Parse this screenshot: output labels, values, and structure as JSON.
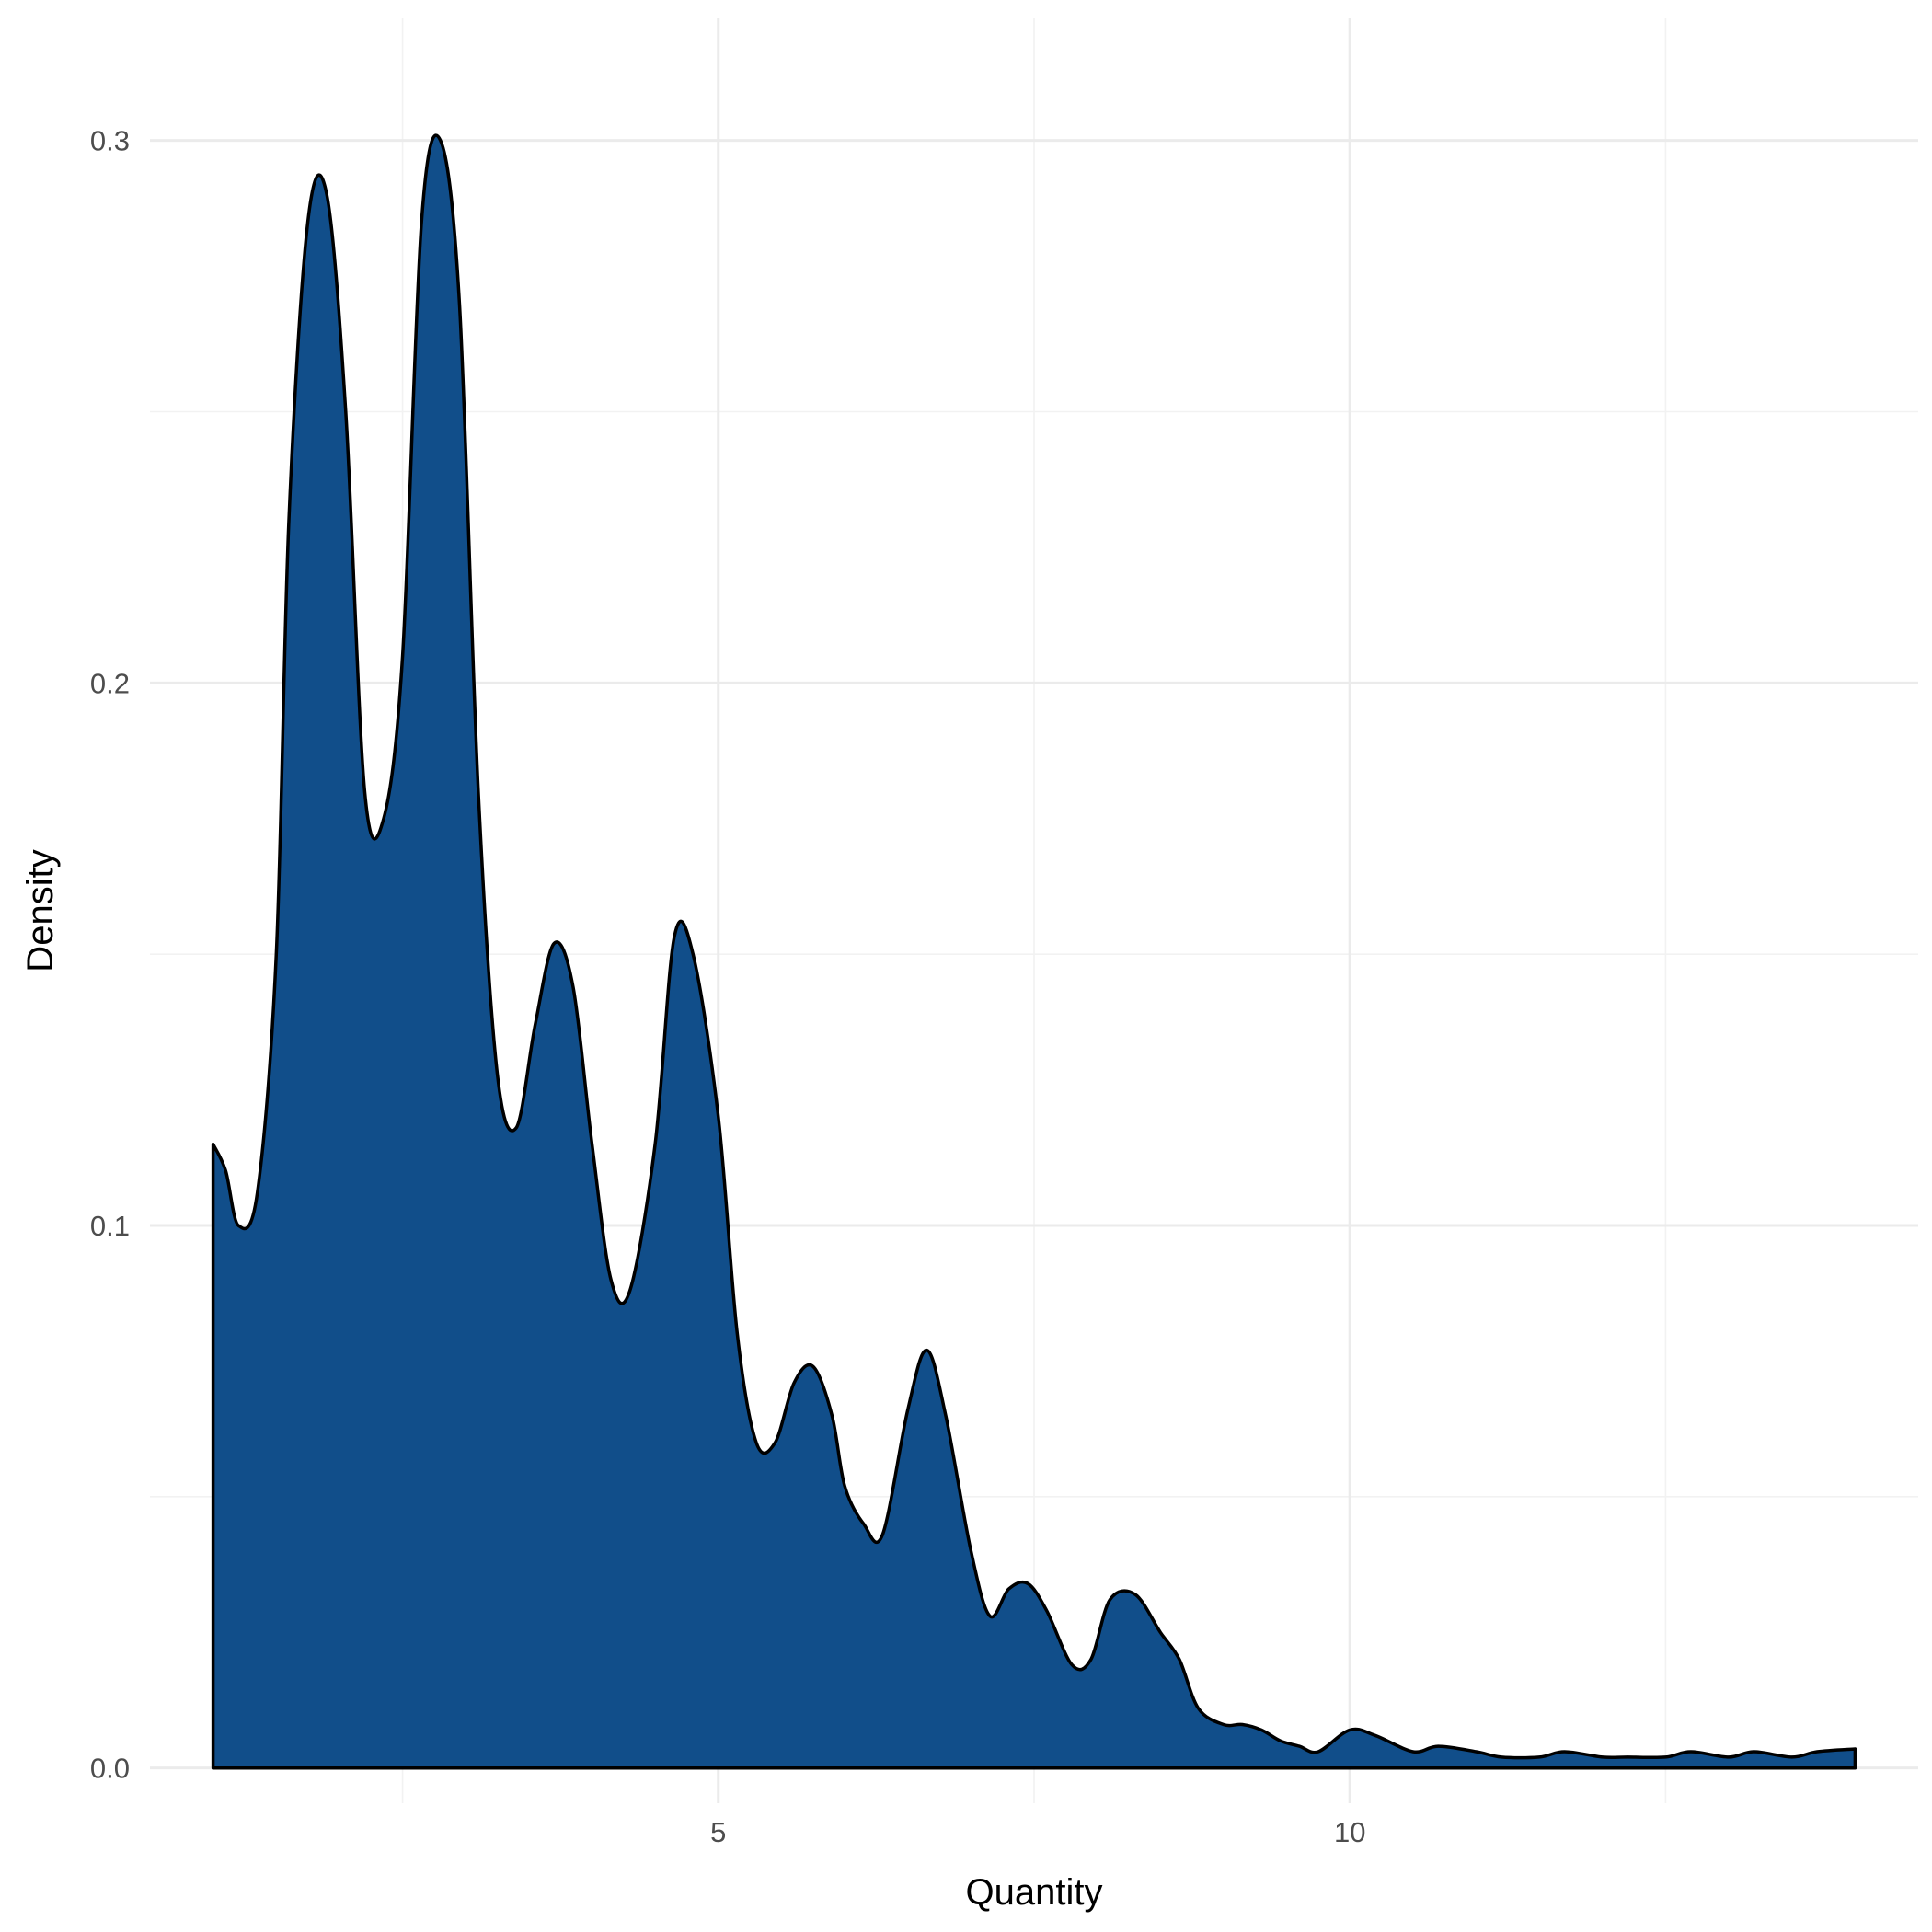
{
  "chart_data": {
    "type": "area",
    "title": "",
    "xlabel": "Quantity",
    "ylabel": "Density",
    "xlim": [
      0.5,
      14.5
    ],
    "ylim": [
      -0.0065,
      0.3225
    ],
    "x_ticks": [
      5,
      10
    ],
    "y_ticks": [
      0.0,
      0.1,
      0.2,
      0.3
    ],
    "y_tick_labels": [
      "0.0",
      "0.1",
      "0.2",
      "0.3"
    ],
    "x_minor_ticks": [
      2.5,
      7.5,
      12.5
    ],
    "y_minor_ticks": [
      0.05,
      0.15,
      0.25
    ],
    "grid": true,
    "fill_color": "#114e8a",
    "line_color": "#000000",
    "series": [
      {
        "x": [
          1,
          1.1,
          1.2,
          1.35,
          1.5,
          1.6,
          1.75,
          1.9,
          2.05,
          2.2,
          2.35,
          2.5,
          2.65,
          2.8,
          2.95,
          3.1,
          3.25,
          3.4,
          3.55,
          3.7,
          3.85,
          4.0,
          4.15,
          4.3,
          4.5,
          4.65,
          4.8,
          5.0,
          5.15,
          5.3,
          5.45,
          5.6,
          5.75,
          5.9,
          6.0,
          6.15,
          6.3,
          6.5,
          6.65,
          6.8,
          7.0,
          7.15,
          7.3,
          7.45,
          7.6,
          7.8,
          7.95,
          8.1,
          8.3,
          8.5,
          8.65,
          8.8,
          9.0,
          9.15,
          9.3,
          9.45,
          9.6,
          9.75,
          10.0,
          10.2,
          10.5,
          10.7,
          11.0,
          11.2,
          11.5,
          11.7,
          12.0,
          12.2,
          12.5,
          12.7,
          13.0,
          13.2,
          13.5,
          13.7,
          14.0
        ],
        "y": [
          0.115,
          0.11,
          0.1,
          0.106,
          0.15,
          0.23,
          0.285,
          0.29,
          0.25,
          0.18,
          0.175,
          0.205,
          0.285,
          0.3,
          0.27,
          0.18,
          0.128,
          0.118,
          0.137,
          0.152,
          0.144,
          0.115,
          0.09,
          0.088,
          0.115,
          0.153,
          0.15,
          0.12,
          0.08,
          0.06,
          0.06,
          0.071,
          0.074,
          0.065,
          0.052,
          0.045,
          0.043,
          0.066,
          0.077,
          0.065,
          0.04,
          0.028,
          0.033,
          0.034,
          0.029,
          0.019,
          0.02,
          0.031,
          0.032,
          0.025,
          0.02,
          0.011,
          0.008,
          0.008,
          0.007,
          0.005,
          0.004,
          0.003,
          0.007,
          0.006,
          0.003,
          0.004,
          0.003,
          0.002,
          0.002,
          0.003,
          0.002,
          0.002,
          0.002,
          0.003,
          0.002,
          0.003,
          0.002,
          0.003,
          0.0035
        ]
      }
    ]
  }
}
